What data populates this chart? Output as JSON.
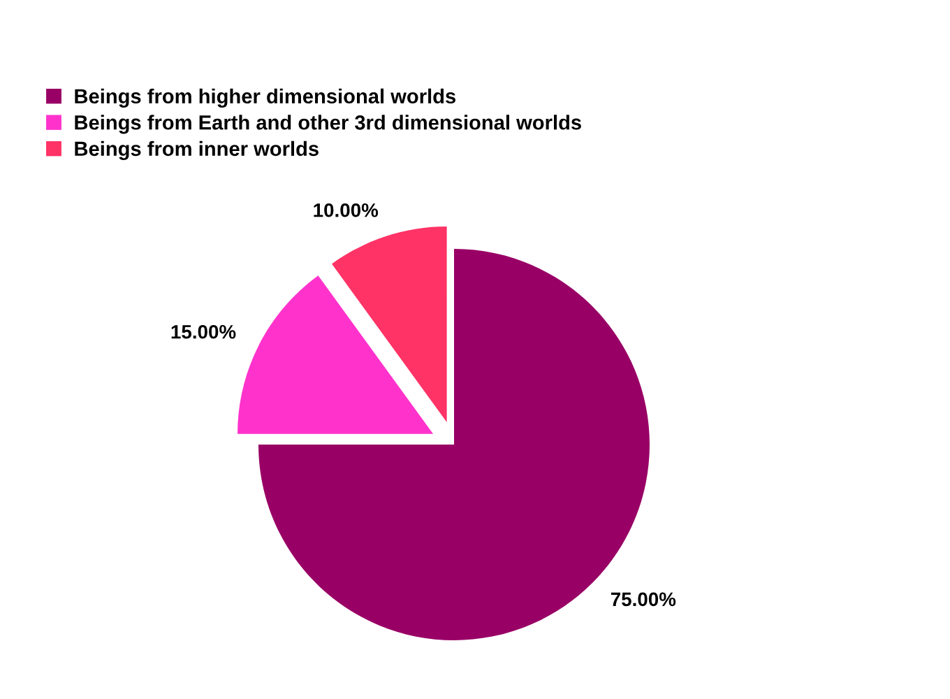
{
  "chart_data": {
    "type": "pie",
    "categories": [
      "Beings from higher dimensional worlds",
      "Beings from Earth and other 3rd dimensional worlds",
      "Beings from inner worlds"
    ],
    "values": [
      75,
      15,
      10
    ],
    "colors": [
      "#990066",
      "#ff33cc",
      "#ff3366"
    ],
    "value_labels": [
      "75.00%",
      "15.00%",
      "10.00%"
    ],
    "legend": "top left"
  }
}
